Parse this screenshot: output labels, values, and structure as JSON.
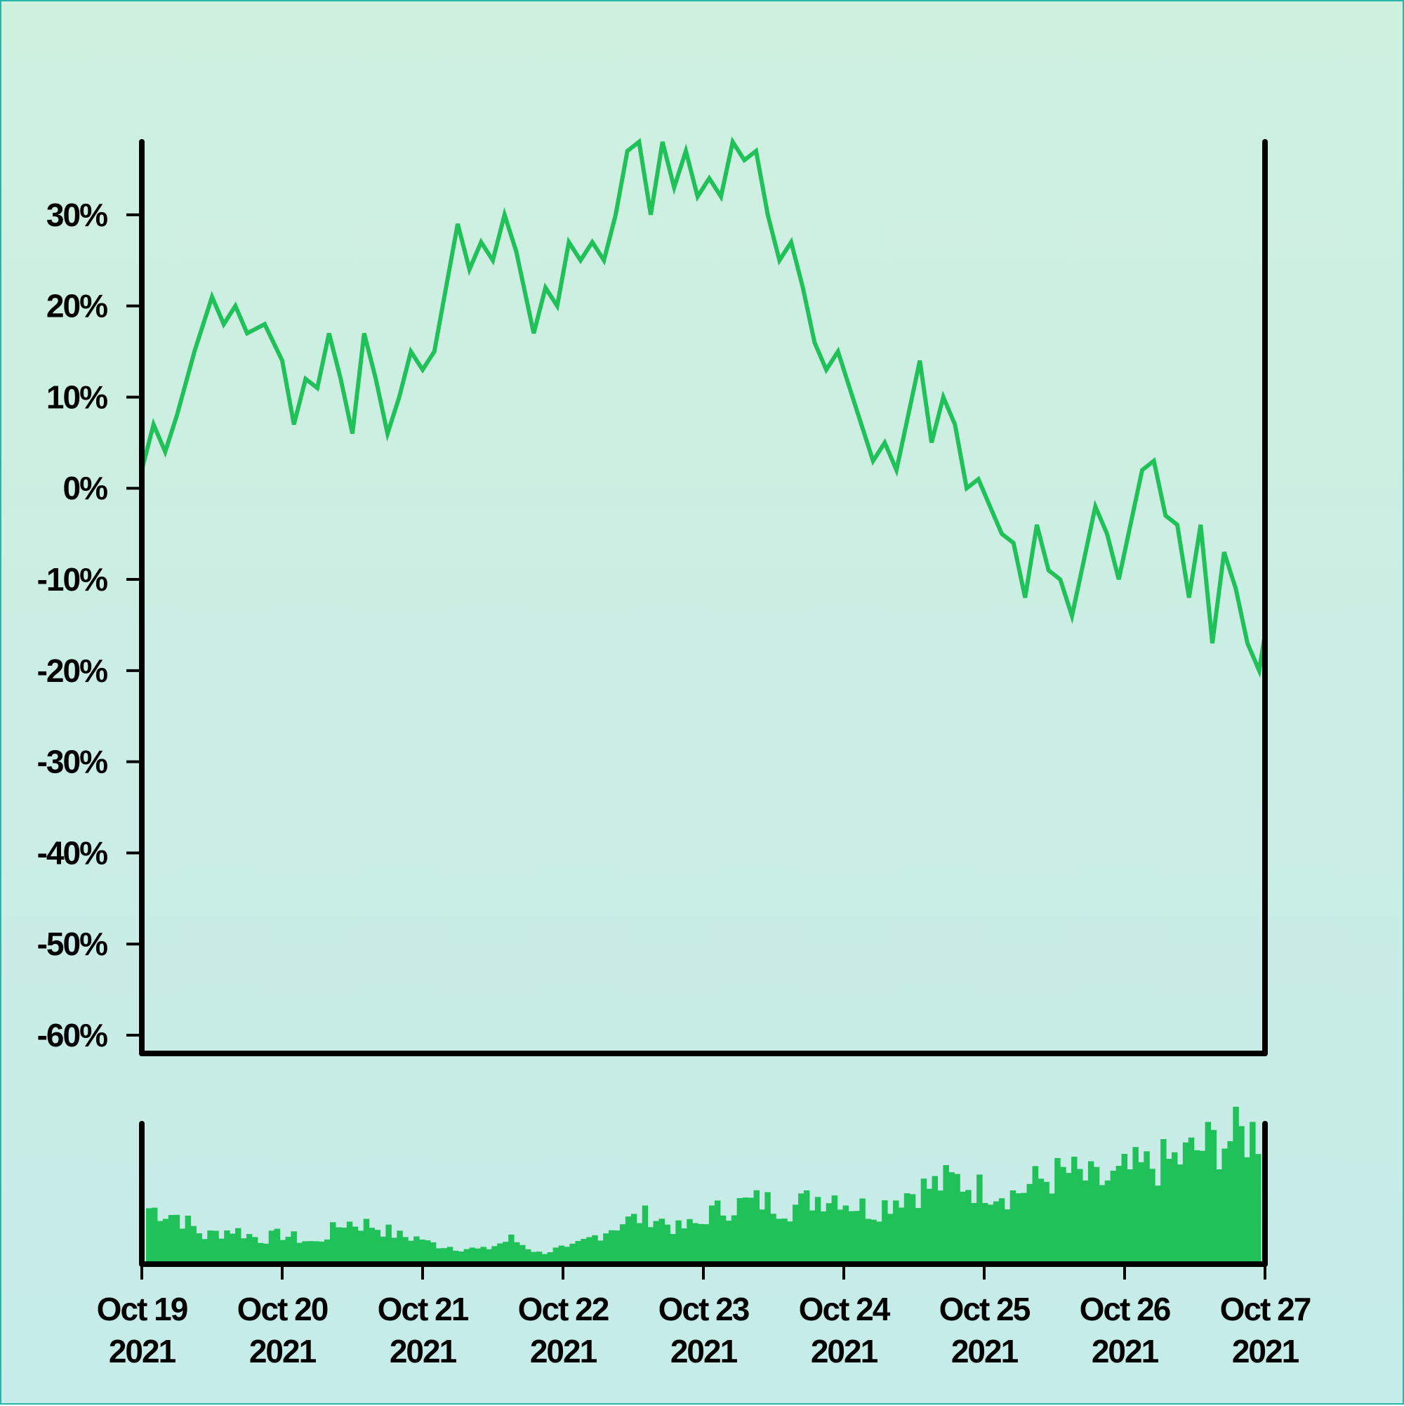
{
  "chart_data": [
    {
      "type": "line",
      "panel": "price",
      "title": "",
      "xlabel": "",
      "ylabel": "",
      "ylim": [
        -62,
        38
      ],
      "y_ticks": [
        30,
        20,
        10,
        0,
        -10,
        -20,
        -30,
        -40,
        -50,
        -60
      ],
      "y_tick_labels": [
        "30%",
        "20%",
        "10%",
        "0%",
        "-10%",
        "-20%",
        "-30%",
        "-40%",
        "-50%",
        "-60%"
      ],
      "x_start": "2021-10-19",
      "x_end": "2021-10-27",
      "line_color": "#21c15a",
      "grid": false,
      "series": [
        {
          "points": [
            [
              "2021-10-19 00:00",
              2
            ],
            [
              "2021-10-19 02:00",
              7
            ],
            [
              "2021-10-19 04:00",
              4
            ],
            [
              "2021-10-19 06:00",
              8
            ],
            [
              "2021-10-19 09:00",
              15
            ],
            [
              "2021-10-19 12:00",
              21
            ],
            [
              "2021-10-19 14:00",
              18
            ],
            [
              "2021-10-19 16:00",
              20
            ],
            [
              "2021-10-19 18:00",
              17
            ],
            [
              "2021-10-19 21:00",
              18
            ],
            [
              "2021-10-20 00:00",
              14
            ],
            [
              "2021-10-20 02:00",
              7
            ],
            [
              "2021-10-20 04:00",
              12
            ],
            [
              "2021-10-20 06:00",
              11
            ],
            [
              "2021-10-20 08:00",
              17
            ],
            [
              "2021-10-20 10:00",
              12
            ],
            [
              "2021-10-20 12:00",
              6
            ],
            [
              "2021-10-20 14:00",
              17
            ],
            [
              "2021-10-20 16:00",
              12
            ],
            [
              "2021-10-20 18:00",
              6
            ],
            [
              "2021-10-20 20:00",
              10
            ],
            [
              "2021-10-20 22:00",
              15
            ],
            [
              "2021-10-21 00:00",
              13
            ],
            [
              "2021-10-21 02:00",
              15
            ],
            [
              "2021-10-21 04:00",
              22
            ],
            [
              "2021-10-21 06:00",
              29
            ],
            [
              "2021-10-21 08:00",
              24
            ],
            [
              "2021-10-21 10:00",
              27
            ],
            [
              "2021-10-21 12:00",
              25
            ],
            [
              "2021-10-21 14:00",
              30
            ],
            [
              "2021-10-21 16:00",
              26
            ],
            [
              "2021-10-21 19:00",
              17
            ],
            [
              "2021-10-21 21:00",
              22
            ],
            [
              "2021-10-21 23:00",
              20
            ],
            [
              "2021-10-22 01:00",
              27
            ],
            [
              "2021-10-22 03:00",
              25
            ],
            [
              "2021-10-22 05:00",
              27
            ],
            [
              "2021-10-22 07:00",
              25
            ],
            [
              "2021-10-22 09:00",
              30
            ],
            [
              "2021-10-22 11:00",
              37
            ],
            [
              "2021-10-22 13:00",
              38
            ],
            [
              "2021-10-22 15:00",
              30
            ],
            [
              "2021-10-22 17:00",
              38
            ],
            [
              "2021-10-22 19:00",
              33
            ],
            [
              "2021-10-22 21:00",
              37
            ],
            [
              "2021-10-22 23:00",
              32
            ],
            [
              "2021-10-23 01:00",
              34
            ],
            [
              "2021-10-23 03:00",
              32
            ],
            [
              "2021-10-23 05:00",
              38
            ],
            [
              "2021-10-23 07:00",
              36
            ],
            [
              "2021-10-23 09:00",
              37
            ],
            [
              "2021-10-23 11:00",
              30
            ],
            [
              "2021-10-23 13:00",
              25
            ],
            [
              "2021-10-23 15:00",
              27
            ],
            [
              "2021-10-23 17:00",
              22
            ],
            [
              "2021-10-23 19:00",
              16
            ],
            [
              "2021-10-23 21:00",
              13
            ],
            [
              "2021-10-23 23:00",
              15
            ],
            [
              "2021-10-24 01:00",
              11
            ],
            [
              "2021-10-24 03:00",
              7
            ],
            [
              "2021-10-24 05:00",
              3
            ],
            [
              "2021-10-24 07:00",
              5
            ],
            [
              "2021-10-24 09:00",
              2
            ],
            [
              "2021-10-24 11:00",
              8
            ],
            [
              "2021-10-24 13:00",
              14
            ],
            [
              "2021-10-24 15:00",
              5
            ],
            [
              "2021-10-24 17:00",
              10
            ],
            [
              "2021-10-24 19:00",
              7
            ],
            [
              "2021-10-24 21:00",
              0
            ],
            [
              "2021-10-24 23:00",
              1
            ],
            [
              "2021-10-25 01:00",
              -2
            ],
            [
              "2021-10-25 03:00",
              -5
            ],
            [
              "2021-10-25 05:00",
              -6
            ],
            [
              "2021-10-25 07:00",
              -12
            ],
            [
              "2021-10-25 09:00",
              -4
            ],
            [
              "2021-10-25 11:00",
              -9
            ],
            [
              "2021-10-25 13:00",
              -10
            ],
            [
              "2021-10-25 15:00",
              -14
            ],
            [
              "2021-10-25 17:00",
              -8
            ],
            [
              "2021-10-25 19:00",
              -2
            ],
            [
              "2021-10-25 21:00",
              -5
            ],
            [
              "2021-10-25 23:00",
              -10
            ],
            [
              "2021-10-26 01:00",
              -4
            ],
            [
              "2021-10-26 03:00",
              2
            ],
            [
              "2021-10-26 05:00",
              3
            ],
            [
              "2021-10-26 07:00",
              -3
            ],
            [
              "2021-10-26 09:00",
              -4
            ],
            [
              "2021-10-26 11:00",
              -12
            ],
            [
              "2021-10-26 13:00",
              -4
            ],
            [
              "2021-10-26 15:00",
              -17
            ],
            [
              "2021-10-26 17:00",
              -7
            ],
            [
              "2021-10-26 19:00",
              -11
            ],
            [
              "2021-10-26 21:00",
              -17
            ],
            [
              "2021-10-26 23:00",
              -20
            ],
            [
              "2021-10-27 00:00",
              -16
            ]
          ]
        }
      ]
    },
    {
      "type": "bar",
      "panel": "volume",
      "title": "",
      "xlabel": "",
      "ylabel": "",
      "bar_color": "#21c15a",
      "x_tick_labels": [
        [
          "Oct 19",
          "2021"
        ],
        [
          "Oct 20",
          "2021"
        ],
        [
          "Oct 21",
          "2021"
        ],
        [
          "Oct 22",
          "2021"
        ],
        [
          "Oct 23",
          "2021"
        ],
        [
          "Oct 24",
          "2021"
        ],
        [
          "Oct 25",
          "2021"
        ],
        [
          "Oct 26",
          "2021"
        ],
        [
          "Oct 27",
          "2021"
        ]
      ],
      "relative_values_by_day": [
        {
          "day": "Oct 19",
          "values": [
            0.4,
            0.35,
            0.2,
            0.25,
            0.18,
            0.22
          ]
        },
        {
          "day": "Oct 20",
          "values": [
            0.2,
            0.15,
            0.3,
            0.28,
            0.2,
            0.18
          ]
        },
        {
          "day": "Oct 21",
          "values": [
            0.15,
            0.12,
            0.1,
            0.18,
            0.08,
            0.12
          ]
        },
        {
          "day": "Oct 22",
          "values": [
            0.1,
            0.2,
            0.3,
            0.35,
            0.25,
            0.3
          ]
        },
        {
          "day": "Oct 23",
          "values": [
            0.35,
            0.42,
            0.45,
            0.4,
            0.48,
            0.5
          ]
        },
        {
          "day": "Oct 24",
          "values": [
            0.45,
            0.38,
            0.5,
            0.55,
            0.6,
            0.52
          ]
        },
        {
          "day": "Oct 25",
          "values": [
            0.55,
            0.5,
            0.6,
            0.65,
            0.58,
            0.62
          ]
        },
        {
          "day": "Oct 26",
          "values": [
            0.65,
            0.7,
            0.75,
            0.85,
            0.9,
            0.95
          ]
        }
      ]
    }
  ]
}
